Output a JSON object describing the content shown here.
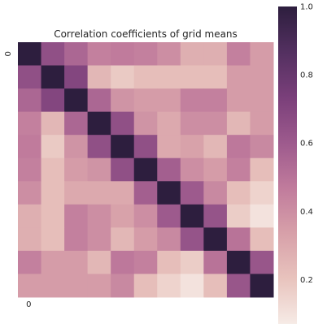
{
  "chart_data": {
    "type": "heatmap",
    "title": "Correlation coefficients of grid means",
    "xlabel": "",
    "ylabel": "",
    "x_tick_labels": [
      "0"
    ],
    "y_tick_labels": [
      "0"
    ],
    "colorbar": {
      "ticks": [
        1.0,
        0.8,
        0.6,
        0.4,
        0.2
      ],
      "tick_labels": [
        "1.0",
        "0.8",
        "0.6",
        "0.4",
        "0.2"
      ],
      "range": [
        0.07,
        1.0
      ],
      "colors": [
        "#f6ebe6",
        "#e8c3bd",
        "#d7a0a9",
        "#c07b9c",
        "#9d5a8d",
        "#7a3f7a",
        "#533060",
        "#2d1e3e"
      ]
    },
    "grid": false,
    "values": [
      [
        1.0,
        0.65,
        0.55,
        0.45,
        0.47,
        0.45,
        0.4,
        0.28,
        0.28,
        0.45,
        0.35
      ],
      [
        0.65,
        1.0,
        0.7,
        0.25,
        0.18,
        0.22,
        0.22,
        0.22,
        0.22,
        0.35,
        0.35
      ],
      [
        0.55,
        0.7,
        1.0,
        0.55,
        0.38,
        0.35,
        0.35,
        0.45,
        0.45,
        0.35,
        0.35
      ],
      [
        0.45,
        0.25,
        0.55,
        1.0,
        0.65,
        0.38,
        0.3,
        0.4,
        0.4,
        0.25,
        0.35
      ],
      [
        0.47,
        0.18,
        0.38,
        0.65,
        1.0,
        0.65,
        0.3,
        0.33,
        0.25,
        0.48,
        0.42
      ],
      [
        0.45,
        0.22,
        0.35,
        0.38,
        0.65,
        1.0,
        0.58,
        0.4,
        0.35,
        0.45,
        0.22
      ],
      [
        0.4,
        0.22,
        0.3,
        0.3,
        0.3,
        0.58,
        1.0,
        0.6,
        0.42,
        0.22,
        0.15
      ],
      [
        0.28,
        0.22,
        0.45,
        0.4,
        0.33,
        0.4,
        0.6,
        1.0,
        0.63,
        0.17,
        0.1
      ],
      [
        0.28,
        0.22,
        0.45,
        0.4,
        0.25,
        0.35,
        0.42,
        0.63,
        1.0,
        0.5,
        0.22
      ],
      [
        0.45,
        0.35,
        0.35,
        0.25,
        0.48,
        0.45,
        0.22,
        0.17,
        0.5,
        1.0,
        0.62
      ],
      [
        0.35,
        0.35,
        0.35,
        0.35,
        0.42,
        0.22,
        0.15,
        0.1,
        0.22,
        0.62,
        1.0
      ]
    ]
  }
}
